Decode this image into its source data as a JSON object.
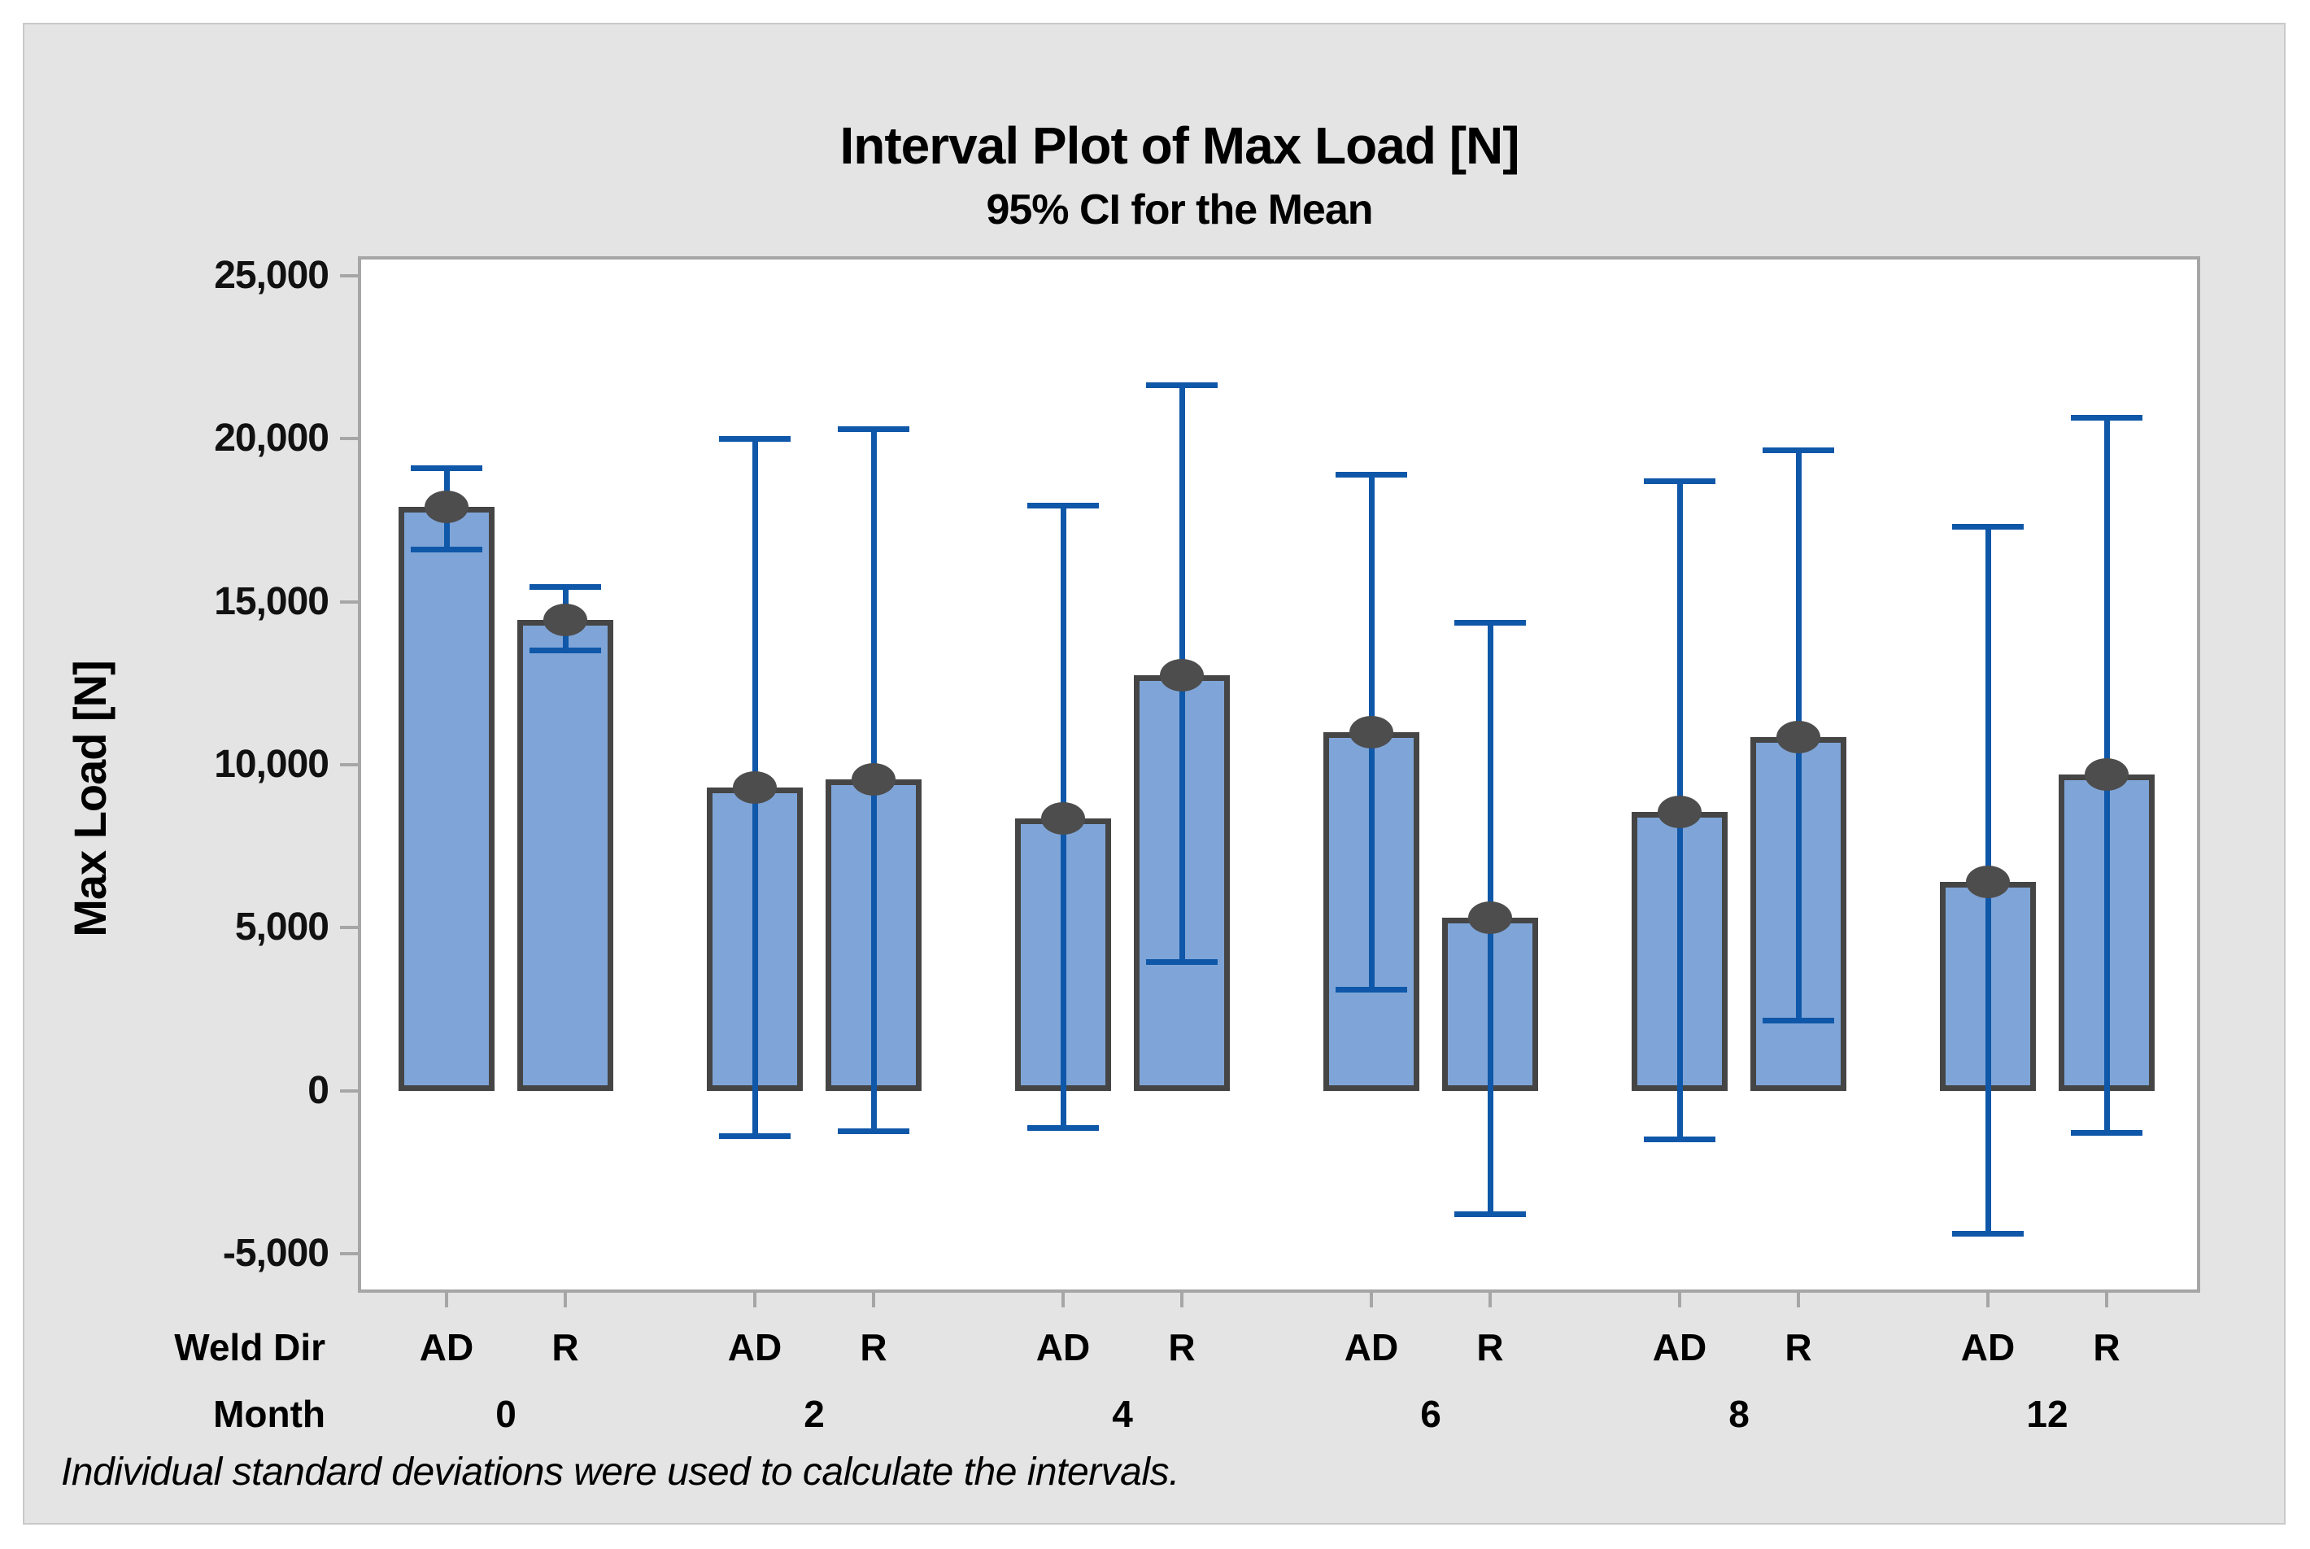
{
  "figure": {
    "title": "Interval Plot of Max Load [N]",
    "subtitle": "95% CI for the Mean",
    "footnote": "Individual standard deviations were used to calculate the intervals.",
    "y_axis": {
      "label": "Max Load [N]",
      "ticks": [
        {
          "label": "25,000",
          "value": 25000
        },
        {
          "label": "20,000",
          "value": 20000
        },
        {
          "label": "15,000",
          "value": 15000
        },
        {
          "label": "10,000",
          "value": 10000
        },
        {
          "label": "5,000",
          "value": 5000
        },
        {
          "label": "0",
          "value": 0
        },
        {
          "label": "-5,000",
          "value": -5000
        }
      ]
    },
    "x_axis": {
      "level1_label": "Weld Dir",
      "level2_label": "Month"
    },
    "colors": {
      "panel_bg": "#e4e4e4",
      "plot_bg": "#ffffff",
      "frame": "#a6a6a6",
      "bar_fill": "#7fa5d8",
      "bar_border": "#454545",
      "interval_line": "#0f57a8",
      "mean_marker": "#4d4d4d",
      "text": "#000000"
    }
  },
  "chart_data": {
    "type": "bar",
    "title": "Interval Plot of Max Load [N]",
    "subtitle": "95% CI for the Mean",
    "ylabel": "Max Load [N]",
    "ylim": [
      -6200,
      25600
    ],
    "grid": false,
    "legend": "none",
    "interval_note": "95% confidence intervals for the mean, individual standard deviations",
    "categories": [
      "0",
      "2",
      "4",
      "6",
      "8",
      "12"
    ],
    "group_labels": [
      "AD",
      "R"
    ],
    "series": [
      {
        "name": "AD",
        "means": [
          17900,
          9300,
          8350,
          11000,
          8550,
          6400
        ],
        "ci_low": [
          16600,
          -1400,
          -1150,
          3100,
          -1500,
          -4400
        ],
        "ci_high": [
          19100,
          20000,
          17950,
          18900,
          18700,
          17300
        ]
      },
      {
        "name": "R",
        "means": [
          14450,
          9550,
          12750,
          5300,
          10850,
          9700
        ],
        "ci_low": [
          13500,
          -1250,
          3950,
          -3800,
          2150,
          -1300
        ],
        "ci_high": [
          15450,
          20300,
          21650,
          14350,
          19650,
          20650
        ]
      }
    ]
  }
}
